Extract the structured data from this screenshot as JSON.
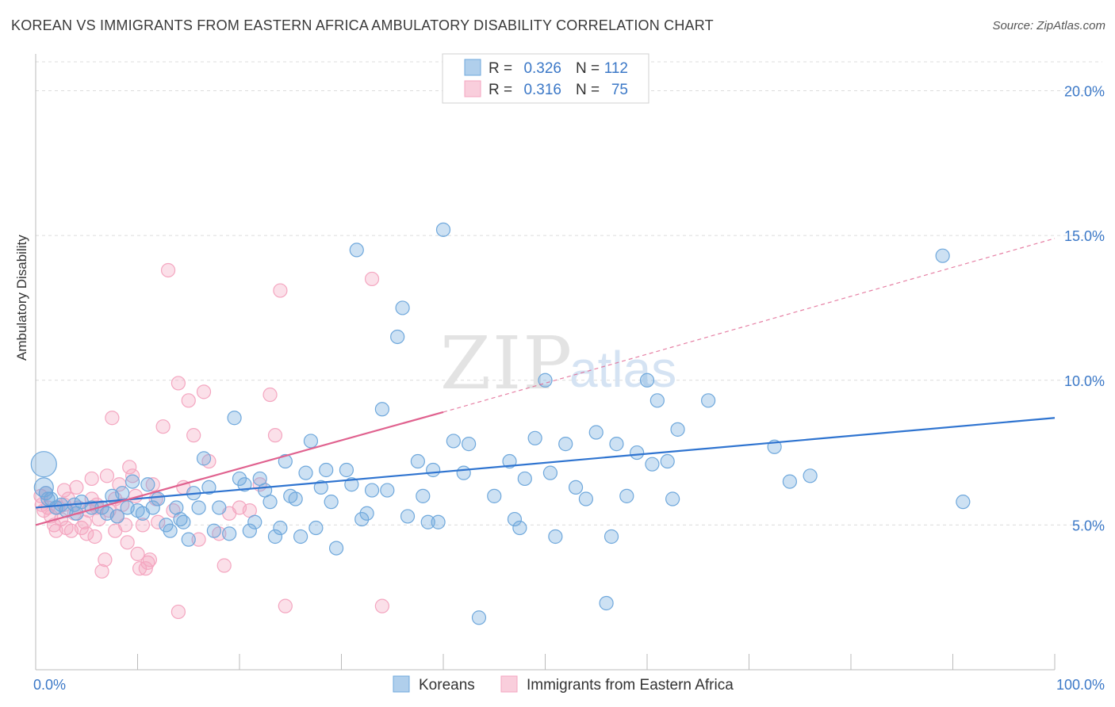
{
  "title": "KOREAN VS IMMIGRANTS FROM EASTERN AFRICA AMBULATORY DISABILITY CORRELATION CHART",
  "source": "Source: ZipAtlas.com",
  "watermark": {
    "zip": "ZIP",
    "atlas": "atlas"
  },
  "chart_data": {
    "type": "scatter",
    "ylabel": "Ambulatory Disability",
    "xlabel": "",
    "xlim": [
      0,
      100
    ],
    "ylim": [
      0,
      21
    ],
    "x_tick_labels": [
      "0.0%",
      "100.0%"
    ],
    "y_ticks": [
      5,
      10,
      15,
      20
    ],
    "y_tick_labels": [
      "5.0%",
      "10.0%",
      "15.0%",
      "20.0%"
    ],
    "grid": true,
    "legend_position": "top-center",
    "legend": [
      {
        "r_label": "R = ",
        "r_value": "0.326",
        "n_label": "N = ",
        "n_value": "112"
      },
      {
        "r_label": "R = ",
        "r_value": "0.316",
        "n_label": "N = ",
        "n_value": "75"
      }
    ],
    "series": [
      {
        "name": "Koreans",
        "color": "#6fa8dc",
        "line_color": "#2f74d0",
        "trend": {
          "x": [
            0,
            100
          ],
          "y": [
            5.6,
            8.7
          ]
        },
        "points": [
          [
            0.8,
            7.1
          ],
          [
            0.8,
            6.3
          ],
          [
            1,
            6.1
          ],
          [
            1.5,
            5.9
          ],
          [
            2,
            5.6
          ],
          [
            3,
            5.5
          ],
          [
            3.8,
            5.7
          ],
          [
            4.5,
            5.8
          ],
          [
            5.5,
            5.6
          ],
          [
            6.5,
            5.6
          ],
          [
            7,
            5.4
          ],
          [
            7.5,
            6.0
          ],
          [
            8,
            5.3
          ],
          [
            8.5,
            6.1
          ],
          [
            9,
            5.6
          ],
          [
            9.5,
            6.5
          ],
          [
            10,
            5.5
          ],
          [
            10.5,
            5.4
          ],
          [
            11,
            6.4
          ],
          [
            11.5,
            5.6
          ],
          [
            12,
            5.9
          ],
          [
            12.8,
            5.0
          ],
          [
            13.2,
            4.8
          ],
          [
            13.8,
            5.6
          ],
          [
            14.2,
            5.2
          ],
          [
            14.5,
            5.1
          ],
          [
            15,
            4.5
          ],
          [
            15.5,
            6.1
          ],
          [
            16,
            5.6
          ],
          [
            16.5,
            7.3
          ],
          [
            17,
            6.3
          ],
          [
            17.5,
            4.8
          ],
          [
            18,
            5.6
          ],
          [
            19,
            4.7
          ],
          [
            19.5,
            8.7
          ],
          [
            20,
            6.6
          ],
          [
            20.5,
            6.4
          ],
          [
            21,
            4.8
          ],
          [
            21.5,
            5.1
          ],
          [
            22,
            6.6
          ],
          [
            22.5,
            6.2
          ],
          [
            23,
            5.8
          ],
          [
            23.5,
            4.6
          ],
          [
            24,
            4.9
          ],
          [
            24.5,
            7.2
          ],
          [
            25,
            6.0
          ],
          [
            25.5,
            5.9
          ],
          [
            26,
            4.6
          ],
          [
            26.5,
            6.8
          ],
          [
            27,
            7.9
          ],
          [
            27.5,
            4.9
          ],
          [
            28,
            6.3
          ],
          [
            28.5,
            6.9
          ],
          [
            29,
            5.8
          ],
          [
            29.5,
            4.2
          ],
          [
            30.5,
            6.9
          ],
          [
            31,
            6.4
          ],
          [
            31.5,
            14.5
          ],
          [
            32,
            5.2
          ],
          [
            32.5,
            5.4
          ],
          [
            33,
            6.2
          ],
          [
            34,
            9.0
          ],
          [
            34.5,
            6.2
          ],
          [
            35.5,
            11.5
          ],
          [
            36,
            12.5
          ],
          [
            36.5,
            5.3
          ],
          [
            37.5,
            7.2
          ],
          [
            38,
            6.0
          ],
          [
            38.5,
            5.1
          ],
          [
            39,
            6.9
          ],
          [
            39.5,
            5.1
          ],
          [
            40,
            15.2
          ],
          [
            41,
            7.9
          ],
          [
            42,
            6.8
          ],
          [
            42.5,
            7.8
          ],
          [
            43.5,
            1.8
          ],
          [
            45,
            6.0
          ],
          [
            46.5,
            7.2
          ],
          [
            47,
            5.2
          ],
          [
            47.5,
            4.9
          ],
          [
            48,
            6.6
          ],
          [
            49,
            8.0
          ],
          [
            50,
            10.0
          ],
          [
            50.5,
            6.8
          ],
          [
            51,
            4.6
          ],
          [
            52,
            7.8
          ],
          [
            53,
            6.3
          ],
          [
            54,
            5.9
          ],
          [
            55,
            8.2
          ],
          [
            56,
            2.3
          ],
          [
            56.5,
            4.6
          ],
          [
            57,
            7.8
          ],
          [
            58,
            6.0
          ],
          [
            59,
            7.5
          ],
          [
            60,
            10.0
          ],
          [
            60.5,
            7.1
          ],
          [
            61,
            9.3
          ],
          [
            62,
            7.2
          ],
          [
            62.5,
            5.9
          ],
          [
            63,
            8.3
          ],
          [
            66,
            9.3
          ],
          [
            72.5,
            7.7
          ],
          [
            74,
            6.5
          ],
          [
            76,
            6.7
          ],
          [
            89,
            14.3
          ],
          [
            91,
            5.8
          ],
          [
            1.2,
            5.9
          ],
          [
            2.5,
            5.7
          ],
          [
            4,
            5.4
          ]
        ]
      },
      {
        "name": "Immigrants from Eastern Africa",
        "color": "#f4a6c0",
        "line_color": "#e0628f",
        "trend": {
          "x": [
            0,
            40
          ],
          "y": [
            5.0,
            8.9
          ]
        },
        "trend_dashed": {
          "x": [
            40,
            100
          ],
          "y": [
            8.9,
            14.9
          ]
        },
        "points": [
          [
            0.5,
            6.0
          ],
          [
            0.6,
            5.7
          ],
          [
            0.8,
            5.5
          ],
          [
            1,
            6.1
          ],
          [
            1.2,
            5.6
          ],
          [
            1.5,
            5.3
          ],
          [
            1.8,
            5.0
          ],
          [
            2,
            4.8
          ],
          [
            2.2,
            5.6
          ],
          [
            2.5,
            5.2
          ],
          [
            2.8,
            5.7
          ],
          [
            3,
            4.9
          ],
          [
            3.2,
            5.9
          ],
          [
            3.5,
            4.8
          ],
          [
            3.8,
            5.4
          ],
          [
            4,
            6.3
          ],
          [
            4.2,
            5.6
          ],
          [
            4.5,
            4.9
          ],
          [
            4.8,
            5.1
          ],
          [
            5,
            4.7
          ],
          [
            5.2,
            5.5
          ],
          [
            5.5,
            5.9
          ],
          [
            5.8,
            4.6
          ],
          [
            6,
            5.7
          ],
          [
            6.2,
            5.2
          ],
          [
            6.5,
            3.4
          ],
          [
            6.8,
            3.8
          ],
          [
            7,
            6.7
          ],
          [
            7.2,
            5.5
          ],
          [
            7.5,
            8.7
          ],
          [
            7.8,
            5.9
          ],
          [
            8,
            5.3
          ],
          [
            8.2,
            6.4
          ],
          [
            8.5,
            5.7
          ],
          [
            8.8,
            5.0
          ],
          [
            9,
            4.4
          ],
          [
            9.2,
            7.0
          ],
          [
            9.5,
            6.7
          ],
          [
            9.8,
            6.0
          ],
          [
            10,
            4.0
          ],
          [
            10.2,
            3.5
          ],
          [
            10.5,
            5.0
          ],
          [
            10.8,
            3.5
          ],
          [
            11,
            3.7
          ],
          [
            11.2,
            3.8
          ],
          [
            11.5,
            6.4
          ],
          [
            11.8,
            5.9
          ],
          [
            12,
            5.1
          ],
          [
            12.5,
            8.4
          ],
          [
            13,
            13.8
          ],
          [
            13.5,
            5.5
          ],
          [
            14,
            9.9
          ],
          [
            14.5,
            6.3
          ],
          [
            15,
            9.3
          ],
          [
            15.5,
            8.1
          ],
          [
            16,
            4.5
          ],
          [
            16.5,
            9.6
          ],
          [
            17,
            7.2
          ],
          [
            18,
            4.7
          ],
          [
            18.5,
            3.6
          ],
          [
            19,
            5.4
          ],
          [
            20,
            5.6
          ],
          [
            14,
            2.0
          ],
          [
            21,
            5.5
          ],
          [
            22,
            6.4
          ],
          [
            23,
            9.5
          ],
          [
            23.5,
            8.1
          ],
          [
            24,
            13.1
          ],
          [
            24.5,
            2.2
          ],
          [
            33,
            13.5
          ],
          [
            34,
            2.2
          ],
          [
            2.8,
            6.2
          ],
          [
            5.5,
            6.6
          ],
          [
            6,
            5.6
          ],
          [
            7.8,
            4.8
          ]
        ]
      }
    ]
  },
  "legend_bottom": [
    "Koreans",
    "Immigrants from Eastern Africa"
  ]
}
